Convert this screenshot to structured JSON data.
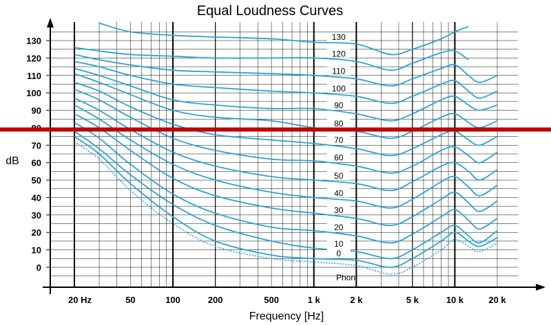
{
  "chart_data": {
    "type": "line",
    "title": "Equal Loudness Curves",
    "xlabel": "Frequency [Hz]",
    "ylabel": "dB",
    "x_scale": "log",
    "xlim": [
      16,
      24000
    ],
    "ylim": [
      -7,
      140
    ],
    "grid": true,
    "x_ticks": [
      {
        "value": 20,
        "label": "20 Hz"
      },
      {
        "value": 50,
        "label": "50"
      },
      {
        "value": 100,
        "label": "100"
      },
      {
        "value": 200,
        "label": "200"
      },
      {
        "value": 500,
        "label": "500"
      },
      {
        "value": 1000,
        "label": "1 k"
      },
      {
        "value": 2000,
        "label": "2 k"
      },
      {
        "value": 5000,
        "label": "5 k"
      },
      {
        "value": 10000,
        "label": "10 k"
      },
      {
        "value": 20000,
        "label": "20 k"
      }
    ],
    "y_ticks": [
      0,
      10,
      20,
      30,
      40,
      50,
      60,
      70,
      80,
      90,
      100,
      110,
      120,
      130
    ],
    "curve_unit_label": "Phon",
    "threshold_series": {
      "name": "",
      "style": "dotted",
      "x": [
        20,
        30,
        50,
        100,
        200,
        500,
        1000,
        2000,
        3500,
        5000,
        8000,
        10000,
        12500,
        15000,
        20000
      ],
      "y": [
        72,
        62,
        44,
        25,
        12,
        5,
        3,
        1,
        -4,
        0,
        10,
        16,
        12,
        9,
        14
      ]
    },
    "series": [
      {
        "name": "0",
        "x": [
          20,
          30,
          50,
          100,
          200,
          500,
          1000,
          2000,
          3500,
          5000,
          8000,
          10000,
          12500,
          15000,
          20000
        ],
        "y": [
          75,
          65,
          48,
          29,
          15,
          7,
          5,
          4,
          0,
          5,
          15,
          20,
          15,
          12,
          17
        ]
      },
      {
        "name": "10",
        "x": [
          20,
          30,
          50,
          100,
          200,
          500,
          1000,
          2000,
          3500,
          5000,
          8000,
          10000,
          12500,
          15000,
          20000
        ],
        "y": [
          78,
          68,
          53,
          36,
          24,
          15,
          11,
          9,
          5,
          10,
          20,
          24,
          18,
          14,
          21
        ]
      },
      {
        "name": "20",
        "x": [
          20,
          30,
          50,
          100,
          200,
          500,
          1000,
          2000,
          3500,
          5000,
          8000,
          10000,
          12500,
          15000,
          20000
        ],
        "y": [
          83,
          74,
          59,
          42,
          31,
          23,
          21,
          18,
          14,
          19,
          29,
          33,
          27,
          22,
          28
        ]
      },
      {
        "name": "30",
        "x": [
          20,
          30,
          50,
          100,
          200,
          500,
          1000,
          2000,
          3500,
          5000,
          8000,
          10000,
          12500,
          15000,
          20000
        ],
        "y": [
          88,
          80,
          67,
          51,
          41,
          34,
          31,
          28,
          24,
          29,
          39,
          43,
          37,
          32,
          38
        ]
      },
      {
        "name": "40",
        "x": [
          20,
          30,
          50,
          100,
          200,
          500,
          1000,
          2000,
          3500,
          5000,
          8000,
          10000,
          12500,
          15000,
          20000
        ],
        "y": [
          93,
          85,
          73,
          59,
          50,
          43,
          40,
          38,
          34,
          39,
          49,
          52,
          46,
          41,
          47
        ]
      },
      {
        "name": "50",
        "x": [
          20,
          30,
          50,
          100,
          200,
          500,
          1000,
          2000,
          3500,
          5000,
          8000,
          10000,
          12500,
          15000,
          20000
        ],
        "y": [
          97,
          90,
          79,
          66,
          58,
          52,
          50,
          48,
          44,
          49,
          58,
          60,
          55,
          50,
          56
        ]
      },
      {
        "name": "60",
        "x": [
          20,
          30,
          50,
          100,
          200,
          500,
          1000,
          2000,
          3500,
          5000,
          8000,
          10000,
          12500,
          15000,
          20000
        ],
        "y": [
          102,
          96,
          86,
          74,
          67,
          62,
          61,
          58,
          54,
          58,
          67,
          69,
          64,
          60,
          66
        ]
      },
      {
        "name": "70",
        "x": [
          20,
          30,
          50,
          100,
          200,
          500,
          1000,
          2000,
          3500,
          5000,
          8000,
          10000,
          12500,
          15000,
          20000
        ],
        "y": [
          106,
          101,
          92,
          82,
          76,
          73,
          71,
          68,
          64,
          68,
          76,
          78,
          73,
          70,
          75
        ]
      },
      {
        "name": "80",
        "x": [
          20,
          30,
          50,
          100,
          200,
          500,
          1000,
          2000,
          3500,
          5000,
          8000,
          10000,
          12500,
          15000,
          20000
        ],
        "y": [
          111,
          106,
          99,
          90,
          86,
          84,
          80,
          78,
          74,
          78,
          86,
          88,
          83,
          80,
          84
        ]
      },
      {
        "name": "90",
        "x": [
          20,
          30,
          50,
          100,
          200,
          500,
          1000,
          2000,
          3500,
          5000,
          8000,
          10000,
          12500,
          15000,
          20000
        ],
        "y": [
          114,
          110,
          104,
          96,
          93,
          91,
          91,
          88,
          84,
          88,
          96,
          98,
          93,
          90,
          93
        ]
      },
      {
        "name": "100",
        "x": [
          20,
          30,
          50,
          100,
          200,
          500,
          1000,
          2000,
          3500,
          5000,
          8000,
          10000,
          12500,
          15000,
          20000
        ],
        "y": [
          118,
          115,
          110,
          105,
          103,
          101,
          100,
          98,
          94,
          98,
          105,
          107,
          101,
          97,
          101
        ]
      },
      {
        "name": "110",
        "x": [
          20,
          30,
          50,
          100,
          200,
          500,
          1000,
          2000,
          3500,
          5000,
          8000,
          10000,
          12500,
          15000,
          20000
        ],
        "y": [
          122,
          119,
          116,
          113,
          112,
          111,
          110,
          108,
          104,
          108,
          114,
          116,
          110,
          106,
          110
        ]
      },
      {
        "name": "120",
        "x": [
          20,
          30,
          50,
          100,
          200,
          500,
          1000,
          2000,
          3500,
          5000,
          8000,
          10000,
          12500
        ],
        "y": [
          126,
          124,
          122,
          121,
          120,
          120,
          120,
          118,
          113,
          117,
          123,
          124,
          119
        ]
      },
      {
        "name": "130",
        "x": [
          30,
          50,
          100,
          200,
          500,
          1000,
          2000,
          3500,
          5000,
          8000,
          10000,
          12500
        ],
        "y": [
          140,
          135,
          133,
          132,
          131,
          129,
          128,
          122,
          125,
          131,
          135,
          138
        ]
      }
    ],
    "highlight_line": {
      "y": 79,
      "color": "#c00000"
    },
    "colors": {
      "curve": "#29a3d6",
      "grid": "#000000",
      "highlight": "#c00000"
    }
  }
}
